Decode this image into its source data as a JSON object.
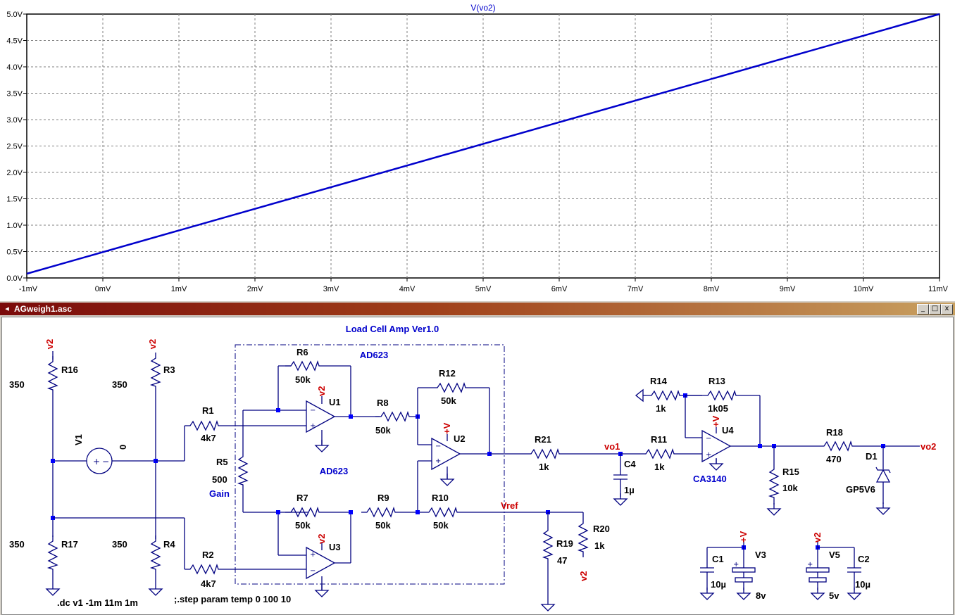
{
  "plot": {
    "trace_label": "V(vo2)",
    "x_ticks": [
      "-1mV",
      "0mV",
      "1mV",
      "2mV",
      "3mV",
      "4mV",
      "5mV",
      "6mV",
      "7mV",
      "8mV",
      "9mV",
      "10mV",
      "11mV"
    ],
    "y_ticks": [
      "5.0V",
      "4.5V",
      "4.0V",
      "3.5V",
      "3.0V",
      "2.5V",
      "2.0V",
      "1.5V",
      "1.0V",
      "0.5V",
      "0.0V"
    ]
  },
  "chart_data": {
    "type": "line",
    "xlabel": "",
    "ylabel": "",
    "xlim": [
      -1,
      11
    ],
    "ylim": [
      0,
      5
    ],
    "x_unit": "mV",
    "y_unit": "V",
    "grid": true,
    "series": [
      {
        "name": "V(vo2)",
        "color": "#0000cc",
        "x": [
          -1,
          11
        ],
        "y": [
          0.08,
          5.0
        ]
      }
    ]
  },
  "schematic_window": {
    "title": "AGweigh1.asc",
    "buttons": {
      "minimize": "_",
      "restore": "□",
      "close": "x"
    }
  },
  "schematic": {
    "title": "Load Cell Amp Ver1.0",
    "box_label_top": "AD623",
    "box_label_mid": "AD623",
    "gain_label": "Gain",
    "vref_label": "Vref",
    "vo1_label": "vo1",
    "vo2_label": "vo2",
    "ca3140_label": "CA3140",
    "directive_dc": ".dc v1 -1m 11m 1m",
    "directive_step": ";.step param temp 0 100 10",
    "components": {
      "R16": "R16",
      "R16_val": "350",
      "R3": "R3",
      "R3_val": "350",
      "R17": "R17",
      "R17_val": "350",
      "R4": "R4",
      "R4_val": "350",
      "V1": "V1",
      "V1_val": "0",
      "R1": "R1",
      "R1_val": "4k7",
      "R2": "R2",
      "R2_val": "4k7",
      "R5": "R5",
      "R5_val": "500",
      "R6": "R6",
      "R6_val": "50k",
      "R7": "R7",
      "R7_val": "50k",
      "R8": "R8",
      "R8_val": "50k",
      "R9": "R9",
      "R9_val": "50k",
      "R10": "R10",
      "R10_val": "50k",
      "R12": "R12",
      "R12_val": "50k",
      "U1": "U1",
      "U2": "U2",
      "U3": "U3",
      "U4": "U4",
      "R21": "R21",
      "R21_val": "1k",
      "C4": "C4",
      "C4_val": "1µ",
      "R11": "R11",
      "R11_val": "1k",
      "R14": "R14",
      "R14_val": "1k",
      "R13": "R13",
      "R13_val": "1k05",
      "R15": "R15",
      "R15_val": "10k",
      "R18": "R18",
      "R18_val": "470",
      "D1": "D1",
      "D1_val": "GP5V6",
      "R19": "R19",
      "R19_val": "47",
      "R20": "R20",
      "R20_val": "1k",
      "C1": "C1",
      "C1_val": "10µ",
      "V3": "V3",
      "V3_val": "8v",
      "V5": "V5",
      "V5_val": "5v",
      "C2": "C2",
      "C2_val": "10µ"
    },
    "net_v2": "v2",
    "net_plusv": "+V"
  }
}
